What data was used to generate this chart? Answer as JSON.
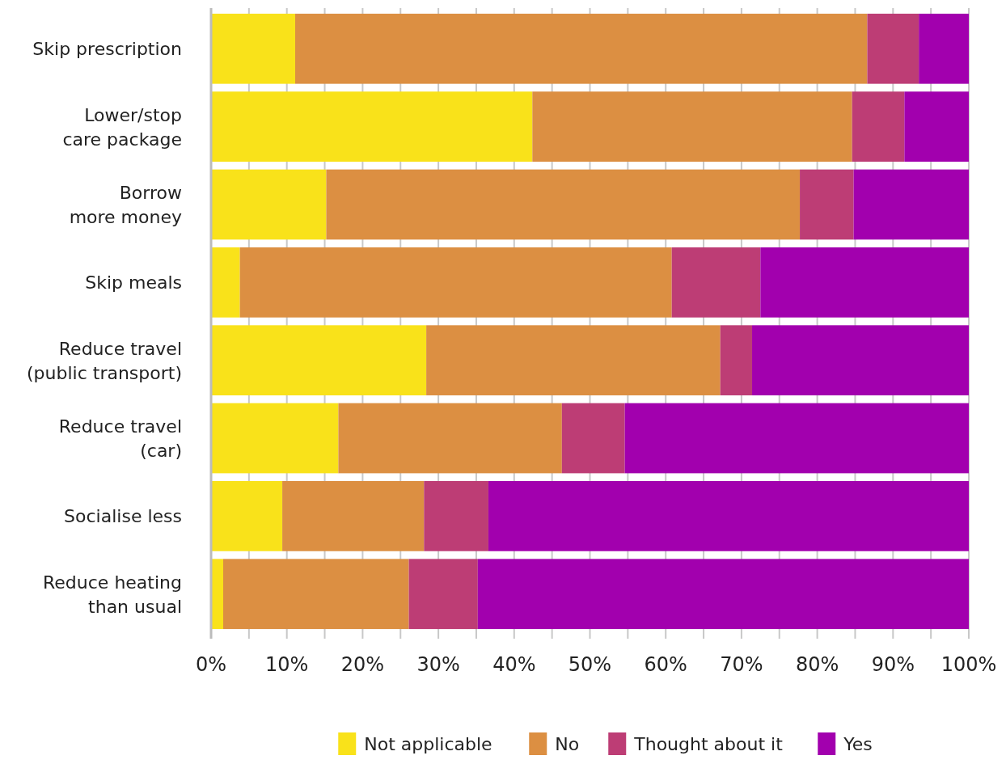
{
  "chart_data": {
    "type": "bar",
    "orientation": "horizontal",
    "stacked": true,
    "categories": [
      "Skip prescription",
      "Lower/stop\ncare package",
      "Borrow\nmore money",
      "Skip meals",
      "Reduce travel\n(public transport)",
      "Reduce travel\n(car)",
      "Socialise less",
      "Reduce heating\nthan usual"
    ],
    "series": [
      {
        "name": "Not applicable",
        "color": "#f9e21a",
        "values": [
          11.1,
          42.4,
          15.2,
          3.8,
          28.4,
          16.8,
          9.4,
          1.6
        ]
      },
      {
        "name": "No",
        "color": "#dc8f42",
        "values": [
          75.5,
          42.2,
          62.5,
          57.0,
          38.8,
          29.5,
          18.7,
          24.5
        ]
      },
      {
        "name": "Thought about it",
        "color": "#bd3d75",
        "values": [
          6.8,
          6.9,
          7.1,
          11.7,
          4.2,
          8.3,
          8.5,
          9.1
        ]
      },
      {
        "name": "Yes",
        "color": "#a200ae",
        "values": [
          6.6,
          8.5,
          15.2,
          27.5,
          28.6,
          45.4,
          63.4,
          64.8
        ]
      }
    ],
    "xlim": [
      0,
      100
    ],
    "xticks": [
      {
        "value": 0,
        "label": "0%"
      },
      {
        "value": 5,
        "label": null
      },
      {
        "value": 10,
        "label": "10%"
      },
      {
        "value": 15,
        "label": null
      },
      {
        "value": 20,
        "label": "20%"
      },
      {
        "value": 25,
        "label": null
      },
      {
        "value": 30,
        "label": "30%"
      },
      {
        "value": 35,
        "label": null
      },
      {
        "value": 40,
        "label": "40%"
      },
      {
        "value": 45,
        "label": null
      },
      {
        "value": 50,
        "label": "50%"
      },
      {
        "value": 55,
        "label": null
      },
      {
        "value": 60,
        "label": "60%"
      },
      {
        "value": 65,
        "label": null
      },
      {
        "value": 70,
        "label": "70%"
      },
      {
        "value": 75,
        "label": null
      },
      {
        "value": 80,
        "label": "80%"
      },
      {
        "value": 85,
        "label": null
      },
      {
        "value": 90,
        "label": "90%"
      },
      {
        "value": 95,
        "label": null
      },
      {
        "value": 100,
        "label": "100%"
      }
    ],
    "grid": "x",
    "legend": "bottom"
  }
}
